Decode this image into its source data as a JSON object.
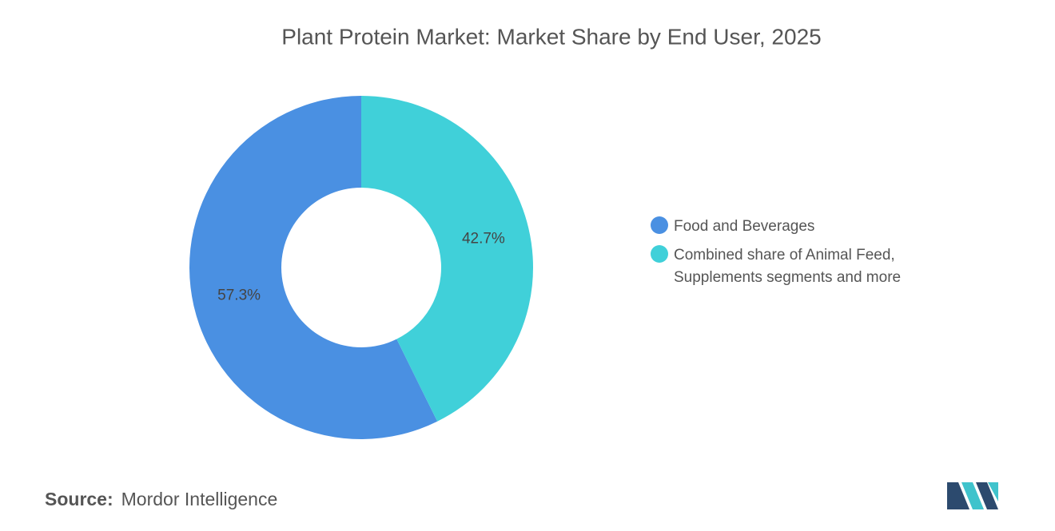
{
  "chart_data": {
    "type": "donut",
    "title": "Plant Protein Market: Market Share by End User, 2025",
    "categories": [
      "Food and Beverages",
      "Combined share of Animal Feed, Supplements segments and more"
    ],
    "values": [
      57.3,
      42.7
    ],
    "value_labels": [
      "57.3%",
      "42.7%"
    ],
    "colors": [
      "#4a90e2",
      "#40d0d9"
    ]
  },
  "source_label": "Source:",
  "source": "Mordor Intelligence"
}
